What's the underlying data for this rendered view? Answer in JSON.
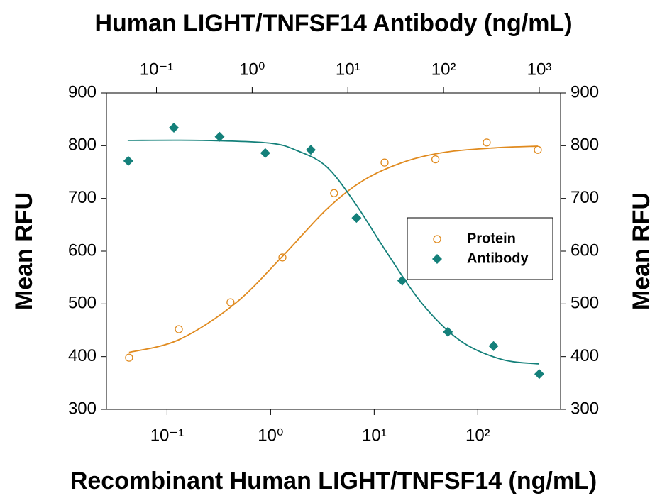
{
  "chart_data": {
    "type": "scatter",
    "x2label": "Human LIGHT/TNFSF14 Antibody (ng/mL)",
    "xlabel": "Recombinant Human LIGHT/TNFSF14 (ng/mL)",
    "ylabel": "Mean RFU",
    "y2label": "Mean RFU",
    "xscale": "log",
    "x2scale": "log",
    "xlim": [
      0.026,
      630
    ],
    "xticks": [
      {
        "value": 0.1,
        "label": "10⁻¹"
      },
      {
        "value": 1,
        "label": "10⁰"
      },
      {
        "value": 10,
        "label": "10¹"
      },
      {
        "value": 100,
        "label": "10²"
      }
    ],
    "x2lim": [
      0.03,
      1670
    ],
    "x2ticks": [
      {
        "value": 0.1,
        "label": "10⁻¹"
      },
      {
        "value": 1,
        "label": "10⁰"
      },
      {
        "value": 10,
        "label": "10¹"
      },
      {
        "value": 100,
        "label": "10²"
      },
      {
        "value": 1000,
        "label": "10³"
      }
    ],
    "ylim": [
      300,
      900
    ],
    "yticks": [
      300,
      400,
      500,
      600,
      700,
      800,
      900
    ],
    "y2lim": [
      300,
      900
    ],
    "y2ticks": [
      300,
      400,
      500,
      600,
      700,
      800,
      900
    ],
    "legend": "center right",
    "series": [
      {
        "name": "Protein",
        "color": "#e08a1e",
        "marker": "circle",
        "x": [
          0.043,
          0.13,
          0.41,
          1.3,
          4.1,
          12.6,
          39,
          122,
          380
        ],
        "values": [
          398,
          452,
          503,
          588,
          710,
          768,
          774,
          806,
          792
        ]
      },
      {
        "name": "Antibody",
        "color": "#14807a",
        "marker": "diamond",
        "axis": "x2",
        "x": [
          0.0508,
          0.152,
          0.457,
          1.37,
          4.1,
          12.3,
          37,
          111,
          333,
          1000
        ],
        "values": [
          771,
          834,
          817,
          786,
          792,
          663,
          544,
          447,
          420,
          367
        ]
      }
    ],
    "fits": [
      {
        "color": "#e08a1e",
        "x": [
          0.043,
          0.13,
          0.45,
          1.3,
          3.5,
          8,
          20,
          50,
          150,
          380
        ],
        "values": [
          408,
          432,
          500,
          590,
          680,
          735,
          770,
          788,
          796,
          799
        ]
      },
      {
        "color": "#14807a",
        "axis": "x2",
        "x": [
          0.05,
          0.3,
          1.5,
          3,
          6,
          12,
          25,
          60,
          150,
          400,
          1000
        ],
        "values": [
          810,
          810,
          805,
          790,
          760,
          690,
          600,
          500,
          430,
          395,
          386
        ]
      }
    ]
  }
}
